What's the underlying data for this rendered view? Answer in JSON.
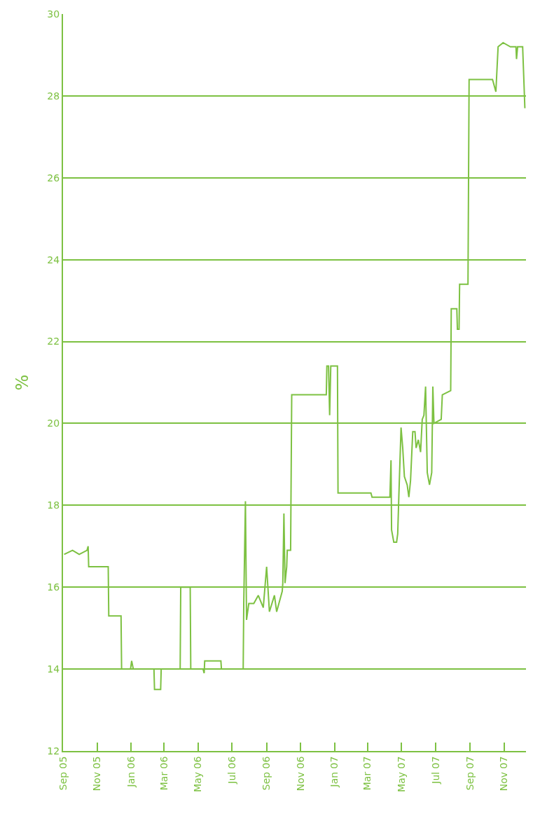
{
  "chart_data": {
    "type": "line",
    "ylabel": "%",
    "x": [
      "2005-09-03",
      "2005-09-18",
      "2005-09-30",
      "2005-10-14",
      "2005-10-16",
      "2005-10-17",
      "2005-11-21",
      "2005-11-22",
      "2005-12-14",
      "2005-12-15",
      "2005-12-31",
      "2006-01-02",
      "2006-01-05",
      "2006-02-11",
      "2006-02-12",
      "2006-02-23",
      "2006-02-24",
      "2006-03-30",
      "2006-03-31",
      "2006-04-17",
      "2006-04-18",
      "2006-05-10",
      "2006-05-12",
      "2006-05-13",
      "2006-06-11",
      "2006-06-12",
      "2006-07-21",
      "2006-07-22",
      "2006-07-25",
      "2006-07-27",
      "2006-07-31",
      "2006-08-09",
      "2006-08-17",
      "2006-08-26",
      "2006-09-01",
      "2006-09-06",
      "2006-09-15",
      "2006-09-19",
      "2006-09-23",
      "2006-09-29",
      "2006-09-30",
      "2006-10-02",
      "2006-10-04",
      "2006-10-07",
      "2006-10-08",
      "2006-10-14",
      "2006-10-16",
      "2006-12-17",
      "2006-12-18",
      "2006-12-21",
      "2006-12-23",
      "2006-12-25",
      "2007-01-06",
      "2007-01-07",
      "2007-03-07",
      "2007-03-09",
      "2007-04-10",
      "2007-04-12",
      "2007-04-13",
      "2007-04-17",
      "2007-04-22",
      "2007-04-24",
      "2007-04-26",
      "2007-04-30",
      "2007-05-03",
      "2007-05-06",
      "2007-05-11",
      "2007-05-14",
      "2007-05-17",
      "2007-05-21",
      "2007-05-25",
      "2007-05-27",
      "2007-05-31",
      "2007-06-04",
      "2007-06-07",
      "2007-06-10",
      "2007-06-13",
      "2007-06-16",
      "2007-06-20",
      "2007-06-24",
      "2007-06-26",
      "2007-06-28",
      "2007-07-11",
      "2007-07-13",
      "2007-07-28",
      "2007-07-29",
      "2007-08-08",
      "2007-08-09",
      "2007-08-12",
      "2007-08-13",
      "2007-08-28",
      "2007-08-30",
      "2007-10-11",
      "2007-10-17",
      "2007-10-21",
      "2007-10-30",
      "2007-11-12",
      "2007-11-22",
      "2007-11-23",
      "2007-11-25",
      "2007-12-04",
      "2007-12-08"
    ],
    "series": [
      {
        "color": "#7dc142",
        "values": [
          16.8,
          16.9,
          16.8,
          16.9,
          17.0,
          16.5,
          16.5,
          15.3,
          15.3,
          14.0,
          14.0,
          14.2,
          14.0,
          14.0,
          13.5,
          13.5,
          14.0,
          14.0,
          16.0,
          16.0,
          14.0,
          14.0,
          13.9,
          14.2,
          14.2,
          14.0,
          14.0,
          15.6,
          18.1,
          15.2,
          15.6,
          15.6,
          15.8,
          15.5,
          16.5,
          15.4,
          15.8,
          15.4,
          15.6,
          15.9,
          16.1,
          17.8,
          16.1,
          16.5,
          16.9,
          16.9,
          20.7,
          20.7,
          21.4,
          21.4,
          20.2,
          21.4,
          21.4,
          18.3,
          18.3,
          18.2,
          18.2,
          19.1,
          17.4,
          17.1,
          17.1,
          17.3,
          18.2,
          19.9,
          19.4,
          18.7,
          18.5,
          18.2,
          18.6,
          19.8,
          19.8,
          19.4,
          19.6,
          19.3,
          20.1,
          20.2,
          20.9,
          18.8,
          18.5,
          18.8,
          20.9,
          20.0,
          20.1,
          20.7,
          20.8,
          22.8,
          22.8,
          22.3,
          22.3,
          23.4,
          23.4,
          28.4,
          28.4,
          28.1,
          29.2,
          29.3,
          29.2,
          29.2,
          28.9,
          29.2,
          29.2,
          27.7
        ]
      }
    ],
    "xlim": [
      "2005-09-01",
      "2007-12-10"
    ],
    "xticks": [
      {
        "value": "2005-09-01",
        "label": "Sep 05"
      },
      {
        "value": "2005-11-01",
        "label": "Nov 05"
      },
      {
        "value": "2006-01-01",
        "label": "Jan 06"
      },
      {
        "value": "2006-03-01",
        "label": "Mar 06"
      },
      {
        "value": "2006-05-01",
        "label": "May 06"
      },
      {
        "value": "2006-07-01",
        "label": "Jul 06"
      },
      {
        "value": "2006-09-01",
        "label": "Sep 06"
      },
      {
        "value": "2006-11-01",
        "label": "Nov 06"
      },
      {
        "value": "2007-01-01",
        "label": "Jan 07"
      },
      {
        "value": "2007-03-01",
        "label": "Mar 07"
      },
      {
        "value": "2007-05-01",
        "label": "May 07"
      },
      {
        "value": "2007-07-01",
        "label": "Jul 07"
      },
      {
        "value": "2007-09-01",
        "label": "Sep 07"
      },
      {
        "value": "2007-11-01",
        "label": "Nov 07"
      }
    ],
    "ylim": [
      12,
      30
    ],
    "yticks": [
      12,
      14,
      16,
      18,
      20,
      22,
      24,
      26,
      28,
      30
    ],
    "grid": "y",
    "line_style": "solid"
  }
}
